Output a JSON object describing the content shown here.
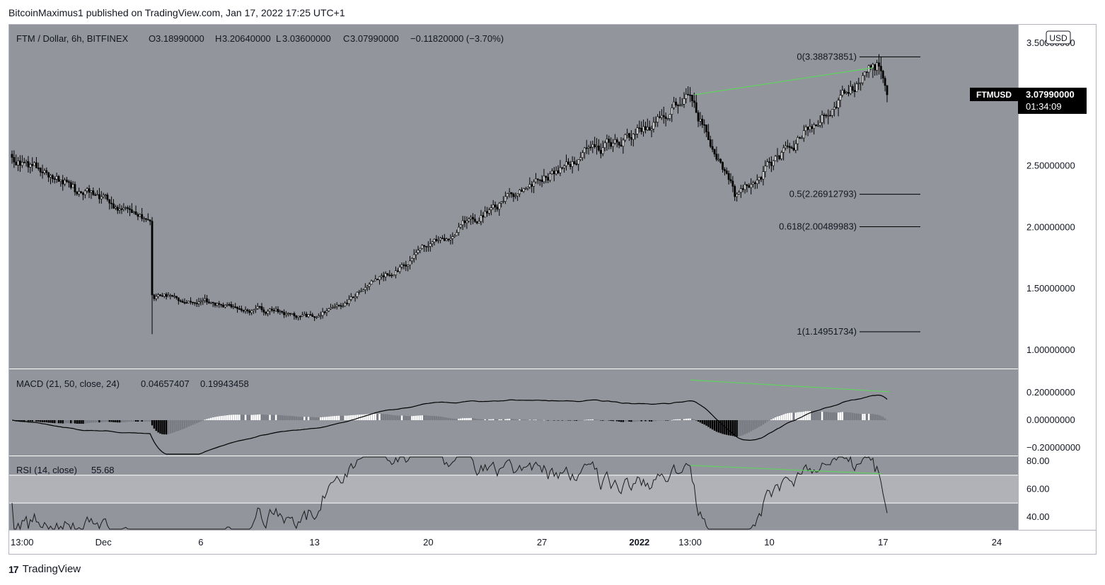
{
  "header": {
    "publisher_line": "BitcoinMaximus1 published on TradingView.com, Jan 17, 2022 17:25 UTC+1"
  },
  "footer": {
    "brand": "TradingView",
    "logo_glyph": "17"
  },
  "colors": {
    "panel_bg": "#93959c",
    "rsi_band": "#b0b2b8",
    "axis_bg": "#ffffff",
    "up_candle": "#ffffff",
    "down_candle": "#000000",
    "trendline": "#5fd35f",
    "fib_line": "#000000",
    "hist_white": "#ffffff",
    "hist_gray": "#787b83",
    "hist_black": "#000000"
  },
  "legend": {
    "symbol": "FTM / Dollar, 6h, BITFINEX",
    "o_label": "O",
    "o": "3.18990000",
    "h_label": "H",
    "h": "3.20640000",
    "l_label": "L",
    "l": "3.03600000",
    "c_label": "C",
    "c": "3.07990000",
    "change": "−0.11820000 (−3.70%)"
  },
  "currency_badge": "USD",
  "price_tag": {
    "symbol": "FTMUSD",
    "price": "3.07990000",
    "countdown": "01:34:09",
    "value": 3.0799
  },
  "price_axis": {
    "ticks": [
      {
        "label": "3.50000000",
        "value": 3.5
      },
      {
        "label": "2.50000000",
        "value": 2.5
      },
      {
        "label": "2.00000000",
        "value": 2.0
      },
      {
        "label": "1.50000000",
        "value": 1.5
      },
      {
        "label": "1.00000000",
        "value": 1.0
      }
    ]
  },
  "fib_levels": [
    {
      "label": "0(3.38873851)",
      "value": 3.38873851
    },
    {
      "label": "0.5(2.26912793)",
      "value": 2.26912793
    },
    {
      "label": "0.618(2.00489983)",
      "value": 2.00489983
    },
    {
      "label": "1(1.14951734)",
      "value": 1.14951734
    }
  ],
  "macd": {
    "title": "MACD (21, 50, close, 24)",
    "value1": "0.04657407",
    "value2": "0.19943458",
    "ticks": [
      {
        "label": "0.20000000",
        "value": 0.2
      },
      {
        "label": "0.00000000",
        "value": 0.0
      },
      {
        "label": "−0.20000000",
        "value": -0.2
      }
    ]
  },
  "rsi": {
    "title": "RSI (14, close)",
    "value": "55.68",
    "ticks": [
      {
        "label": "80.00",
        "value": 80
      },
      {
        "label": "60.00",
        "value": 60
      },
      {
        "label": "40.00",
        "value": 40
      }
    ],
    "band": [
      50,
      70
    ]
  },
  "time_axis": {
    "labels": [
      {
        "label": "13:00",
        "bar": 0,
        "bold": false
      },
      {
        "label": "Dec",
        "bar": 45,
        "bold": false
      },
      {
        "label": "6",
        "bar": 93,
        "bold": false
      },
      {
        "label": "13",
        "bar": 149,
        "bold": false
      },
      {
        "label": "20",
        "bar": 205,
        "bold": false
      },
      {
        "label": "27",
        "bar": 261,
        "bold": false
      },
      {
        "label": "2022",
        "bar": 309,
        "bold": true
      },
      {
        "label": "13:00",
        "bar": 334,
        "bold": false
      },
      {
        "label": "10",
        "bar": 373,
        "bold": false
      },
      {
        "label": "17",
        "bar": 429,
        "bold": false
      },
      {
        "label": "24",
        "bar": 485,
        "bold": false
      }
    ]
  },
  "chart_data": {
    "type": "candlestick",
    "title": "FTM / Dollar, 6h, BITFINEX",
    "interval": "6h",
    "ylim": [
      0.85,
      3.65
    ],
    "price_anchors": [
      {
        "bar": 0,
        "close": 2.57,
        "note": "start"
      },
      {
        "bar": 30,
        "close": 2.35,
        "note": "late Nov plateau"
      },
      {
        "bar": 68,
        "close": 2.05,
        "note": "pre-crash"
      },
      {
        "bar": 69,
        "close": 1.45,
        "note": "crash, wick low 1.13"
      },
      {
        "bar": 150,
        "close": 1.27,
        "note": "mid-Dec low"
      },
      {
        "bar": 255,
        "close": 2.35,
        "note": "late Dec high"
      },
      {
        "bar": 335,
        "close": 3.03,
        "note": "Jan 13 peak, high 3.08"
      },
      {
        "bar": 356,
        "close": 2.25,
        "note": "Jan 9 low"
      },
      {
        "bar": 425,
        "close": 3.28,
        "note": "Jan 16 high"
      },
      {
        "bar": 431,
        "close": 3.08,
        "note": "last close"
      }
    ],
    "divergence_lines": [
      {
        "panel": "price",
        "from": {
          "bar": 336,
          "value": 3.08
        },
        "to": {
          "bar": 424,
          "value": 3.3
        }
      },
      {
        "panel": "macd",
        "from": {
          "bar": 334,
          "value": 0.29
        },
        "to": {
          "bar": 432,
          "value": 0.205
        }
      },
      {
        "panel": "rsi",
        "from": {
          "bar": 334,
          "value": 77
        },
        "to": {
          "bar": 428,
          "value": 71
        }
      }
    ]
  }
}
